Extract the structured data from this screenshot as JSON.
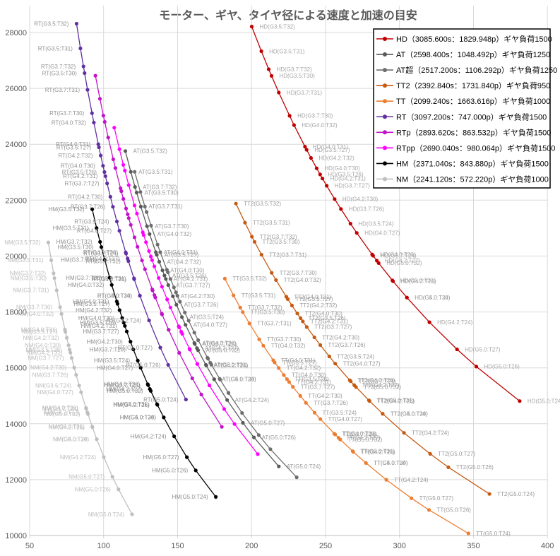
{
  "chart_data": {
    "type": "scatter",
    "title": "モーター、ギヤ、タイヤ径による速度と加速の目安",
    "point_formula": "x = power * gear / tire ; y = speed * tire / gear",
    "label_format": "{name}(G{gear}:T{tire})",
    "gears": [
      3.5,
      3.7,
      4.0,
      4.2,
      5.0
    ],
    "tires": [
      32,
      31,
      30,
      27,
      26,
      24
    ],
    "x_axis": {
      "min": 50,
      "max": 400,
      "ticks": [
        50,
        100,
        150,
        200,
        250,
        300,
        350,
        400
      ]
    },
    "y_axis": {
      "min": 10000,
      "max": 28000,
      "ticks": [
        10000,
        12000,
        14000,
        16000,
        18000,
        20000,
        22000,
        24000,
        26000,
        28000
      ]
    },
    "grid": true,
    "legend_position": "top-right",
    "style": {
      "title_color": "#595959",
      "grid_color": "#D9D9D9",
      "axis_line_color": "#BFBFBF",
      "tick_label_color": "#595959",
      "legend_border_color": "#000000",
      "legend_text_color": "#000000"
    },
    "series": [
      {
        "name": "HD",
        "speed": 3085.6,
        "power": 1829.948,
        "legend_spec": "（3085.600s：1829.948p）",
        "legend_load": "ギヤ負荷1500",
        "color": "#C00000",
        "label_side": "right",
        "label_color": "#A6A6A6"
      },
      {
        "name": "AT",
        "speed": 2598.4,
        "power": 1048.492,
        "legend_spec": "（2598.400s：1048.492p）",
        "legend_load": "ギヤ負荷1250",
        "color": "#595959",
        "label_side": "right",
        "label_color": "#989898"
      },
      {
        "name": "AT超",
        "speed": 2517.2,
        "power": 1106.292,
        "legend_spec": "（2517.200s：1106.292p）",
        "legend_load": "ギヤ負荷1250",
        "color": "#6E6E6E",
        "label_side": "none",
        "label_color": "#989898"
      },
      {
        "name": "TT2",
        "speed": 2392.84,
        "power": 1731.84,
        "legend_spec": "（2392.840s：1731.840p）",
        "legend_load": "ギヤ負荷950",
        "color": "#C55A11",
        "label_side": "right",
        "label_color": "#989898"
      },
      {
        "name": "TT",
        "speed": 2099.24,
        "power": 1663.616,
        "legend_spec": "（2099.240s：1663.616p）",
        "legend_load": "ギヤ負荷1000",
        "color": "#ED7D31",
        "label_side": "right",
        "label_color": "#989898"
      },
      {
        "name": "RT",
        "speed": 3097.2,
        "power": 747.0,
        "legend_spec": "（3097.200s：747.000p）",
        "legend_load": "ギヤ負荷1500",
        "color": "#6030A0",
        "label_side": "left",
        "label_color": "#929292"
      },
      {
        "name": "RTp",
        "speed": 2893.62,
        "power": 863.532,
        "legend_spec": "（2893.620s：863.532p）",
        "legend_load": "ギヤ負荷1500",
        "color": "#C213C9",
        "label_side": "none",
        "label_color": "#929292"
      },
      {
        "name": "RTpp",
        "speed": 2690.04,
        "power": 980.064,
        "legend_spec": "（2690.040s：980.064p）",
        "legend_load": "ギヤ負荷1500",
        "color": "#FF00FF",
        "label_side": "none",
        "label_color": "#929292"
      },
      {
        "name": "HM",
        "speed": 2371.04,
        "power": 843.88,
        "legend_spec": "（2371.040s：843.880p）",
        "legend_load": "ギヤ負荷1500",
        "color": "#000000",
        "label_side": "left",
        "label_color": "#8E8E8E"
      },
      {
        "name": "NM",
        "speed": 2241.12,
        "power": 572.22,
        "legend_spec": "（2241.120s：572.220p）",
        "legend_load": "ギヤ負荷1000",
        "color": "#BFBFBF",
        "label_side": "left",
        "label_color": "#BCBCBC"
      }
    ]
  }
}
